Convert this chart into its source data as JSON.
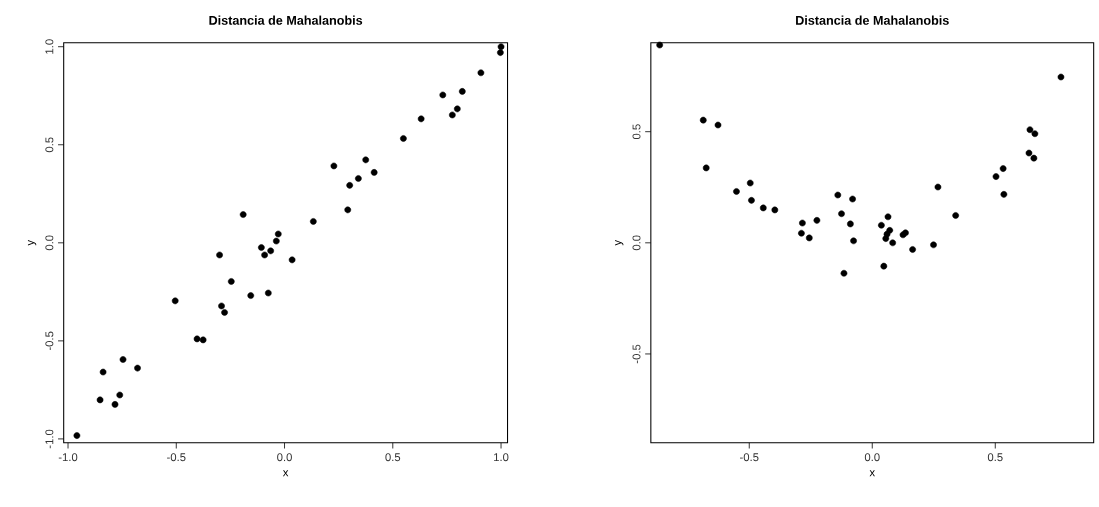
{
  "chart_data": [
    {
      "type": "scatter",
      "title": "Distancia de Mahalanobis",
      "xlabel": "x",
      "ylabel": "y",
      "marker": "circle",
      "xlim": [
        -1.02,
        1.03
      ],
      "ylim": [
        -1.02,
        1.02
      ],
      "xticks": [
        {
          "value": -1,
          "label": "-1.0"
        },
        {
          "value": -0.5,
          "label": "-0.5"
        },
        {
          "value": 0,
          "label": "0.0"
        },
        {
          "value": 0.5,
          "label": "0.5"
        },
        {
          "value": 1,
          "label": "1.0"
        }
      ],
      "yticks": [
        {
          "value": -1,
          "label": "-1.0"
        },
        {
          "value": -0.5,
          "label": "-0.5"
        },
        {
          "value": 0,
          "label": "0.0"
        },
        {
          "value": 0.5,
          "label": "0.5"
        },
        {
          "value": 1,
          "label": "1.0"
        }
      ],
      "series": [
        {
          "color": "#000000",
          "x": [
            1.0,
            0.997,
            0.907,
            0.731,
            0.821,
            0.798,
            0.775,
            0.631,
            0.549,
            0.228,
            0.375,
            0.414,
            0.341,
            0.301,
            0.292,
            0.133,
            -0.191,
            -0.029,
            -0.038,
            -0.107,
            -0.092,
            -0.064,
            0.035,
            -0.3,
            -0.246,
            -0.156,
            -0.075,
            -0.505,
            -0.291,
            -0.277,
            -0.404,
            -0.376,
            -0.746,
            -0.679,
            -0.838,
            -0.852,
            -0.761,
            -0.783,
            -0.959
          ],
          "values": [
            1.0,
            0.97,
            0.867,
            0.754,
            0.772,
            0.683,
            0.652,
            0.632,
            0.532,
            0.392,
            0.423,
            0.359,
            0.328,
            0.293,
            0.168,
            0.109,
            0.144,
            0.045,
            0.009,
            -0.024,
            -0.062,
            -0.041,
            -0.087,
            -0.062,
            -0.197,
            -0.269,
            -0.256,
            -0.296,
            -0.322,
            -0.355,
            -0.49,
            -0.495,
            -0.595,
            -0.639,
            -0.659,
            -0.801,
            -0.776,
            -0.824,
            -0.983
          ]
        }
      ]
    },
    {
      "type": "scatter",
      "title": "Distancia de Mahalanobis",
      "xlabel": "x",
      "ylabel": "y",
      "marker": "circle",
      "xlim": [
        -0.9,
        0.9
      ],
      "ylim": [
        -0.9,
        0.9
      ],
      "xticks": [
        {
          "value": -0.5,
          "label": "-0.5"
        },
        {
          "value": 0,
          "label": "0.0"
        },
        {
          "value": 0.5,
          "label": "0.5"
        }
      ],
      "yticks": [
        {
          "value": -0.5,
          "label": "-0.5"
        },
        {
          "value": 0,
          "label": "0.0"
        },
        {
          "value": 0.5,
          "label": "0.5"
        }
      ],
      "series": [
        {
          "color": "#000000",
          "x": [
            -0.864,
            0.767,
            -0.687,
            -0.627,
            -0.675,
            0.641,
            0.661,
            0.637,
            0.657,
            0.532,
            0.503,
            0.535,
            0.267,
            0.339,
            -0.496,
            -0.552,
            -0.491,
            -0.443,
            -0.396,
            -0.14,
            -0.08,
            -0.125,
            -0.089,
            -0.076,
            -0.225,
            -0.284,
            -0.288,
            -0.256,
            -0.115,
            0.037,
            0.064,
            0.071,
            0.06,
            0.055,
            0.083,
            0.125,
            0.135,
            0.164,
            0.249,
            0.047
          ],
          "values": [
            0.89,
            0.746,
            0.552,
            0.53,
            0.337,
            0.509,
            0.491,
            0.404,
            0.381,
            0.334,
            0.298,
            0.218,
            0.251,
            0.123,
            0.269,
            0.231,
            0.191,
            0.157,
            0.148,
            0.215,
            0.197,
            0.131,
            0.085,
            0.009,
            0.101,
            0.089,
            0.043,
            0.022,
            -0.137,
            0.079,
            0.117,
            0.056,
            0.039,
            0.019,
            0.0,
            0.036,
            0.045,
            -0.03,
            -0.009,
            -0.105
          ]
        }
      ]
    }
  ]
}
